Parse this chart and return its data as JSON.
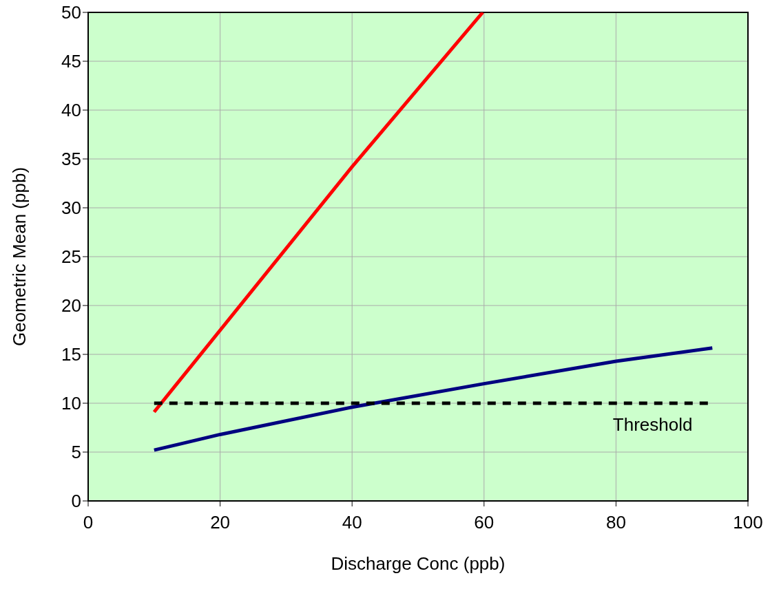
{
  "chart_data": {
    "type": "line",
    "xlabel": "Discharge Conc (ppb)",
    "ylabel": "Geometric Mean (ppb)",
    "xlim": [
      0,
      100
    ],
    "xticks": [
      0,
      20,
      40,
      60,
      80,
      100
    ],
    "ylim": [
      0,
      50
    ],
    "yticks": [
      0,
      5,
      10,
      15,
      20,
      25,
      30,
      35,
      40,
      45,
      50
    ],
    "grid": true,
    "marker": "none",
    "series": [
      {
        "color": "#ff0000",
        "x": [
          10,
          40,
          59.8
        ],
        "values": [
          9.1,
          34.2,
          50
        ]
      },
      {
        "color": "#000080",
        "x": [
          10,
          20,
          40,
          60,
          80,
          94.6
        ],
        "values": [
          5.2,
          6.8,
          9.6,
          12.0,
          14.3,
          15.65
        ]
      },
      {
        "name": "Threshold",
        "color": "#000000",
        "line_style": "dashed",
        "x": [
          10,
          94.2
        ],
        "values": [
          10,
          10
        ]
      }
    ]
  }
}
